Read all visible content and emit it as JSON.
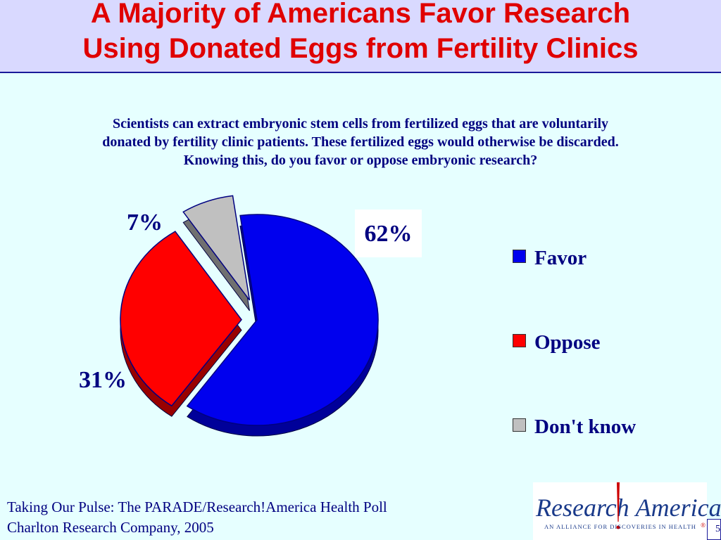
{
  "header": {
    "title_line1": "A Majority of Americans Favor Research",
    "title_line2": "Using Donated Eggs from Fertility Clinics"
  },
  "question": {
    "line1": "Scientists can extract embryonic stem cells from fertilized eggs that are voluntarily",
    "line2": "donated by fertility clinic patients. These fertilized eggs would otherwise be discarded.",
    "line3": "Knowing this, do you favor or oppose embryonic research?"
  },
  "chart_data": {
    "type": "pie",
    "style": "3d-exploded",
    "categories": [
      "Favor",
      "Oppose",
      "Don't know"
    ],
    "values": [
      62,
      31,
      7
    ],
    "labels": [
      "62%",
      "31%",
      "7%"
    ],
    "colors": [
      "#0000ee",
      "#ff0000",
      "#c0c0c0"
    ],
    "legend_placement": "right"
  },
  "source": {
    "line1": "Taking Our Pulse: The PARADE/Research!America Health Poll",
    "line2": "Charlton Research Company, 2005"
  },
  "logo": {
    "name_left": "Research",
    "name_right": "America",
    "tagline": "AN ALLIANCE FOR DISCOVERIES IN HEALTH",
    "registered": "®",
    "colors": {
      "text": "#1a3a8a",
      "bang": "#cc0000"
    }
  },
  "slide_number": "5"
}
